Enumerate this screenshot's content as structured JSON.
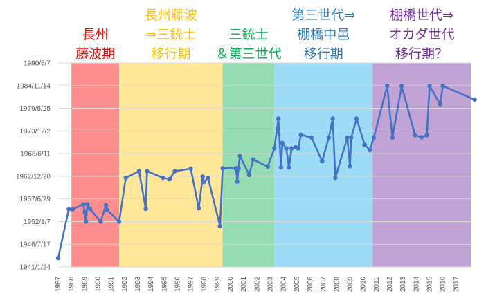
{
  "chart_data": {
    "type": "line",
    "title": "",
    "xlabel": "",
    "ylabel": "",
    "x_ticks": [
      "1987",
      "1988",
      "1989",
      "1990",
      "1991",
      "1992",
      "1993",
      "1994",
      "1995",
      "1996",
      "1997",
      "1998",
      "1999",
      "2000",
      "2001",
      "2002",
      "2003",
      "2004",
      "2005",
      "2006",
      "2007",
      "2008",
      "2009",
      "2010",
      "2011",
      "2012",
      "2013",
      "2014",
      "2015",
      "2016",
      "2017"
    ],
    "y_ticks": [
      "1941/1/24",
      "1946/7/17",
      "1952/1/7",
      "1957/6/29",
      "1962/12/20",
      "1968/6/11",
      "1973/12/2",
      "1979/5/25",
      "1984/11/14",
      "1990/5/7"
    ],
    "xlim": [
      1987,
      2018.5
    ],
    "ylim": [
      1941.06,
      1990.35
    ],
    "grid": "horizontal",
    "series": [
      {
        "color": "#4472c4",
        "points": [
          [
            1987.0,
            1943.2
          ],
          [
            1987.8,
            1955.0
          ],
          [
            1988.1,
            1955.0
          ],
          [
            1988.9,
            1956.2
          ],
          [
            1989.0,
            1954.3
          ],
          [
            1989.1,
            1952.0
          ],
          [
            1989.2,
            1956.2
          ],
          [
            1989.4,
            1955.1
          ],
          [
            1990.2,
            1952.0
          ],
          [
            1990.6,
            1956.0
          ],
          [
            1990.7,
            1954.8
          ],
          [
            1991.6,
            1952.0
          ],
          [
            1992.1,
            1962.6
          ],
          [
            1993.1,
            1964.2
          ],
          [
            1993.6,
            1955.1
          ],
          [
            1993.7,
            1964.2
          ],
          [
            1994.9,
            1962.6
          ],
          [
            1995.4,
            1962.3
          ],
          [
            1995.8,
            1964.2
          ],
          [
            1997.0,
            1964.8
          ],
          [
            1997.6,
            1955.2
          ],
          [
            1997.9,
            1962.9
          ],
          [
            1998.0,
            1961.6
          ],
          [
            1998.3,
            1962.6
          ],
          [
            1999.2,
            1950.9
          ],
          [
            1999.4,
            1964.9
          ],
          [
            2000.4,
            1964.9
          ],
          [
            2000.5,
            1961.7
          ],
          [
            2000.6,
            1964.9
          ],
          [
            2000.7,
            1967.9
          ],
          [
            2001.4,
            1963.3
          ],
          [
            2001.7,
            1967.0
          ],
          [
            2002.8,
            1965.3
          ],
          [
            2003.3,
            1969.7
          ],
          [
            2003.6,
            1976.9
          ],
          [
            2003.8,
            1965.1
          ],
          [
            2003.9,
            1971.0
          ],
          [
            2004.2,
            1969.7
          ],
          [
            2004.4,
            1965.1
          ],
          [
            2004.6,
            1969.7
          ],
          [
            2004.9,
            1970.0
          ],
          [
            2005.1,
            1969.7
          ],
          [
            2005.3,
            1973.0
          ],
          [
            2006.1,
            1972.3
          ],
          [
            2006.9,
            1966.6
          ],
          [
            2007.4,
            1972.3
          ],
          [
            2007.7,
            1976.9
          ],
          [
            2007.9,
            1962.6
          ],
          [
            2008.8,
            1972.3
          ],
          [
            2009.0,
            1965.4
          ],
          [
            2009.1,
            1972.3
          ],
          [
            2009.5,
            1976.9
          ],
          [
            2010.1,
            1970.6
          ],
          [
            2010.5,
            1969.3
          ],
          [
            2010.8,
            1972.3
          ],
          [
            2011.8,
            1984.8
          ],
          [
            2012.2,
            1972.3
          ],
          [
            2012.9,
            1984.8
          ],
          [
            2013.9,
            1972.9
          ],
          [
            2014.4,
            1972.4
          ],
          [
            2014.8,
            1972.9
          ],
          [
            2015.0,
            1984.8
          ],
          [
            2015.8,
            1980.4
          ],
          [
            2016.0,
            1984.8
          ],
          [
            2018.4,
            1981.5
          ]
        ]
      }
    ],
    "eras": [
      {
        "lines": [
          "長州",
          "藤波期"
        ],
        "x_start": 1988.0,
        "x_end": 1991.6,
        "color": "#ff8f8f",
        "label_color": "#ff0000"
      },
      {
        "lines": [
          "長州藤波",
          "⇒三銃士",
          "移行期"
        ],
        "x_start": 1991.6,
        "x_end": 1999.4,
        "color": "#ffe699",
        "label_color": "#ffc000"
      },
      {
        "lines": [
          "三銃士",
          "＆第三世代"
        ],
        "x_start": 1999.4,
        "x_end": 2003.3,
        "color": "#95dcb2",
        "label_color": "#00b050"
      },
      {
        "lines": [
          "第三世代⇒",
          "棚橋中邑",
          "移行期"
        ],
        "x_start": 2003.3,
        "x_end": 2010.7,
        "color": "#9ddcf7",
        "label_color": "#2e75b6"
      },
      {
        "lines": [
          "棚橋世代⇒",
          "オカダ世代",
          "移行期？"
        ],
        "x_start": 2010.7,
        "x_end": 2018.5,
        "color": "#c1a3d6",
        "label_color": "#7030a0"
      }
    ]
  }
}
